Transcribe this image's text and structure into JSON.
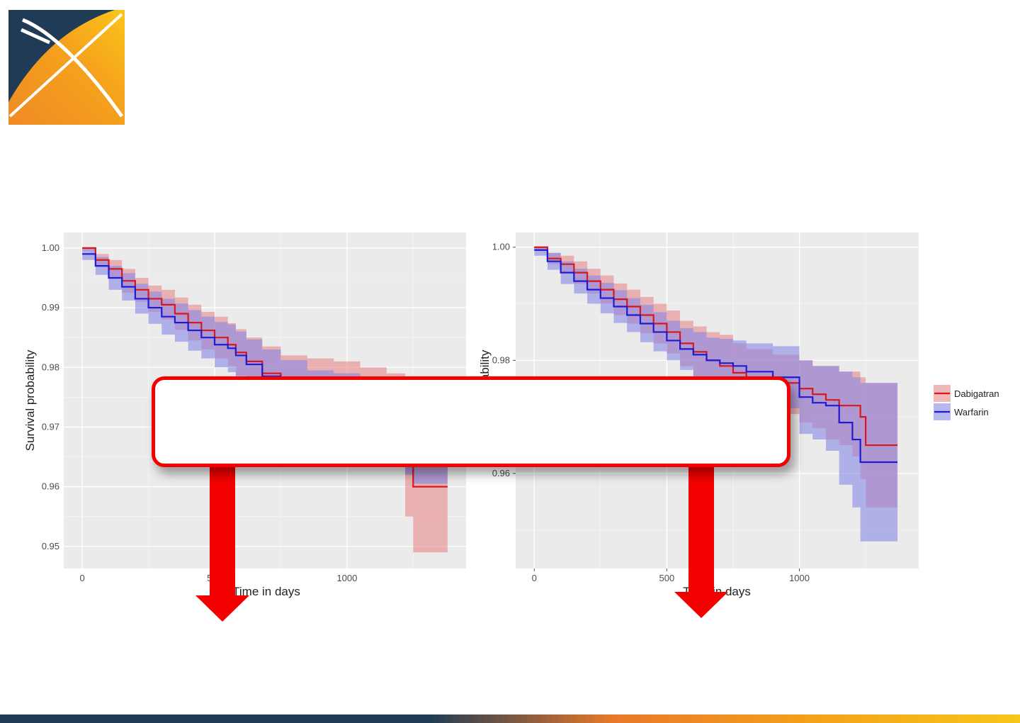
{
  "logo": {
    "name": "x-shaped orange and navy logo"
  },
  "callout": {
    "text": ""
  },
  "colors": {
    "dabigatran": "#d7191c",
    "warfarin": "#1c1cd6",
    "dabigatran_band": "#e8898a",
    "warfarin_band": "#8888e6",
    "callout_border": "#f30000",
    "arrow": "#f30000",
    "panel_bg": "#ebebeb"
  },
  "chart_data": [
    {
      "type": "line",
      "title": "",
      "xlabel": "Time in days",
      "ylabel": "Survival probability",
      "xlim": [
        -70,
        1450
      ],
      "ylim": [
        0.9463,
        1.0026
      ],
      "x_ticks": [
        0,
        500,
        1000
      ],
      "x_tick_labels": [
        "0",
        "500",
        "1000"
      ],
      "y_ticks": [
        0.95,
        0.96,
        0.97,
        0.98,
        0.99,
        1.0
      ],
      "y_tick_labels": [
        "0.95",
        "0.96",
        "0.97",
        "0.98",
        "0.99",
        "1.00"
      ],
      "grid": true,
      "series": [
        {
          "name": "Dabigatran",
          "x": [
            0,
            50,
            100,
            150,
            200,
            250,
            300,
            350,
            400,
            450,
            500,
            550,
            580,
            620,
            680,
            750,
            850,
            950,
            1050,
            1150,
            1220,
            1250,
            1380
          ],
          "y": [
            1.0,
            0.998,
            0.9965,
            0.9945,
            0.993,
            0.9915,
            0.9905,
            0.989,
            0.9875,
            0.9862,
            0.985,
            0.9838,
            0.9825,
            0.981,
            0.979,
            0.977,
            0.976,
            0.975,
            0.974,
            0.973,
            0.965,
            0.96,
            0.96
          ],
          "lower": [
            0.9995,
            0.997,
            0.995,
            0.9925,
            0.991,
            0.9893,
            0.988,
            0.9863,
            0.9845,
            0.983,
            0.9815,
            0.9802,
            0.9786,
            0.977,
            0.9745,
            0.972,
            0.9705,
            0.969,
            0.968,
            0.966,
            0.955,
            0.949,
            0.949
          ],
          "upper": [
            1.0,
            0.999,
            0.998,
            0.9965,
            0.995,
            0.9937,
            0.993,
            0.9917,
            0.9905,
            0.9893,
            0.9885,
            0.9874,
            0.9864,
            0.985,
            0.9835,
            0.982,
            0.9815,
            0.981,
            0.98,
            0.979,
            0.975,
            0.971,
            0.971
          ]
        },
        {
          "name": "Warfarin",
          "x": [
            0,
            50,
            100,
            150,
            200,
            250,
            300,
            350,
            400,
            450,
            500,
            550,
            580,
            620,
            680,
            750,
            850,
            950,
            1050,
            1150,
            1220,
            1250,
            1380
          ],
          "y": [
            0.999,
            0.997,
            0.995,
            0.9935,
            0.9915,
            0.99,
            0.9885,
            0.9875,
            0.9862,
            0.985,
            0.9838,
            0.9832,
            0.982,
            0.9805,
            0.9785,
            0.9765,
            0.975,
            0.974,
            0.972,
            0.971,
            0.969,
            0.967,
            0.967
          ],
          "lower": [
            0.998,
            0.9955,
            0.993,
            0.9912,
            0.989,
            0.9873,
            0.9855,
            0.9843,
            0.9828,
            0.9815,
            0.98,
            0.9792,
            0.978,
            0.9763,
            0.974,
            0.9718,
            0.9705,
            0.969,
            0.9665,
            0.965,
            0.962,
            0.9605,
            0.9605
          ],
          "upper": [
            1.0,
            0.9985,
            0.997,
            0.9958,
            0.994,
            0.9927,
            0.9915,
            0.9907,
            0.9896,
            0.9885,
            0.9876,
            0.9872,
            0.986,
            0.9847,
            0.983,
            0.9812,
            0.9795,
            0.979,
            0.978,
            0.977,
            0.976,
            0.9745,
            0.9745
          ]
        }
      ]
    },
    {
      "type": "line",
      "title": "",
      "xlabel": "Time in days",
      "ylabel": "Survival probability",
      "xlim": [
        -70,
        1450
      ],
      "ylim": [
        0.9432,
        1.0026
      ],
      "x_ticks": [
        0,
        500,
        1000
      ],
      "x_tick_labels": [
        "0",
        "500",
        "1000"
      ],
      "y_ticks": [
        0.96,
        0.98,
        1.0
      ],
      "y_tick_labels": [
        "0.96",
        "0.98",
        "1.00"
      ],
      "grid": true,
      "legend": {
        "position": "right",
        "entries": [
          "Dabigatran",
          "Warfarin"
        ]
      },
      "series": [
        {
          "name": "Dabigatran",
          "x": [
            0,
            50,
            100,
            150,
            200,
            250,
            300,
            350,
            400,
            450,
            500,
            550,
            600,
            650,
            700,
            750,
            800,
            900,
            1000,
            1050,
            1100,
            1150,
            1200,
            1230,
            1250,
            1370
          ],
          "y": [
            1.0,
            0.998,
            0.997,
            0.9955,
            0.994,
            0.9925,
            0.9908,
            0.9895,
            0.988,
            0.9865,
            0.985,
            0.983,
            0.9815,
            0.98,
            0.979,
            0.9778,
            0.977,
            0.976,
            0.975,
            0.974,
            0.973,
            0.972,
            0.972,
            0.97,
            0.965,
            0.965
          ],
          "lower": [
            0.9995,
            0.997,
            0.9955,
            0.9935,
            0.9918,
            0.99,
            0.988,
            0.9865,
            0.9848,
            0.983,
            0.9812,
            0.979,
            0.977,
            0.9752,
            0.974,
            0.9725,
            0.9715,
            0.9705,
            0.969,
            0.968,
            0.966,
            0.965,
            0.963,
            0.959,
            0.954,
            0.954
          ],
          "upper": [
            1.0,
            0.999,
            0.9985,
            0.9975,
            0.9962,
            0.995,
            0.9936,
            0.9925,
            0.9912,
            0.99,
            0.9888,
            0.987,
            0.986,
            0.985,
            0.9845,
            0.983,
            0.982,
            0.981,
            0.98,
            0.979,
            0.979,
            0.978,
            0.978,
            0.977,
            0.976,
            0.976
          ]
        },
        {
          "name": "Warfarin",
          "x": [
            0,
            50,
            100,
            150,
            200,
            250,
            300,
            350,
            400,
            450,
            500,
            550,
            600,
            650,
            700,
            750,
            800,
            900,
            1000,
            1050,
            1100,
            1150,
            1200,
            1230,
            1250,
            1370
          ],
          "y": [
            0.9995,
            0.9975,
            0.9955,
            0.994,
            0.9925,
            0.991,
            0.9895,
            0.988,
            0.9865,
            0.985,
            0.9835,
            0.982,
            0.981,
            0.98,
            0.9795,
            0.979,
            0.978,
            0.977,
            0.9735,
            0.9725,
            0.972,
            0.969,
            0.966,
            0.962,
            0.962,
            0.962
          ],
          "lower": [
            0.9985,
            0.996,
            0.9935,
            0.9918,
            0.99,
            0.9883,
            0.9866,
            0.985,
            0.9832,
            0.9816,
            0.98,
            0.9783,
            0.977,
            0.976,
            0.975,
            0.9745,
            0.973,
            0.9715,
            0.967,
            0.966,
            0.964,
            0.958,
            0.954,
            0.948,
            0.948,
            0.948
          ],
          "upper": [
            1.0,
            0.999,
            0.9975,
            0.9962,
            0.995,
            0.9937,
            0.9924,
            0.991,
            0.9898,
            0.9885,
            0.987,
            0.9857,
            0.985,
            0.984,
            0.9838,
            0.9835,
            0.983,
            0.9825,
            0.98,
            0.979,
            0.979,
            0.978,
            0.977,
            0.976,
            0.976,
            0.976
          ]
        }
      ]
    }
  ]
}
